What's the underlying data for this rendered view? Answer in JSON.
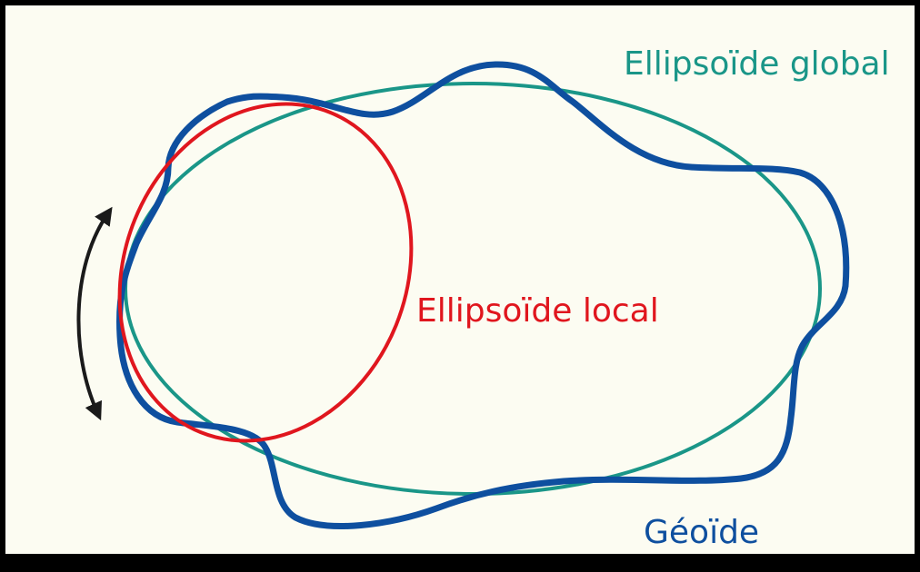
{
  "labels": {
    "global_ellipsoid": "Ellipsoïde global",
    "local_ellipsoid": "Ellipsoïde local",
    "geoid": "Géoïde"
  },
  "colors": {
    "background": "#fcfcf2",
    "frame": "#000000",
    "global_ellipsoid": "#1a9688",
    "local_ellipsoid": "#e0161e",
    "geoid": "#0e4f9f",
    "arrow": "#1a1a1a"
  },
  "icons": {
    "rotation_arrow": "double-headed-curved-arrow-icon"
  }
}
